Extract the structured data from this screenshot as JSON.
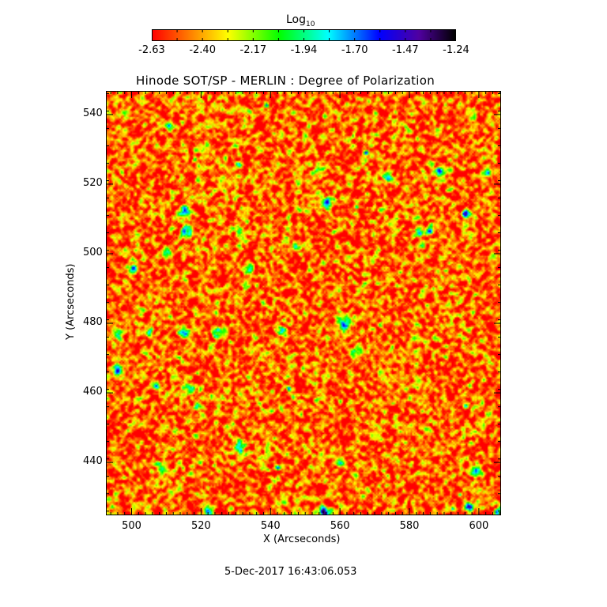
{
  "chart_data": {
    "type": "heatmap",
    "title": "Hinode SOT/SP - MERLIN : Degree of Polarization",
    "xlabel": "X (Arcseconds)",
    "ylabel": "Y (Arcseconds)",
    "xlim": [
      492.6,
      606.4
    ],
    "ylim": [
      424.8,
      546.8
    ],
    "xticks": [
      500,
      520,
      540,
      560,
      580,
      600
    ],
    "yticks": [
      440,
      460,
      480,
      500,
      520,
      540
    ],
    "colorbar": {
      "label": "Log",
      "label_sub": "10",
      "range": [
        -2.63,
        -1.24
      ],
      "ticks": [
        "-2.63",
        "-2.40",
        "-2.17",
        "-1.94",
        "-1.70",
        "-1.47",
        "-1.24"
      ],
      "colormap": "rainbow (red to black)"
    }
  },
  "footer": {
    "timestamp": "5-Dec-2017 16:43:06.053"
  }
}
